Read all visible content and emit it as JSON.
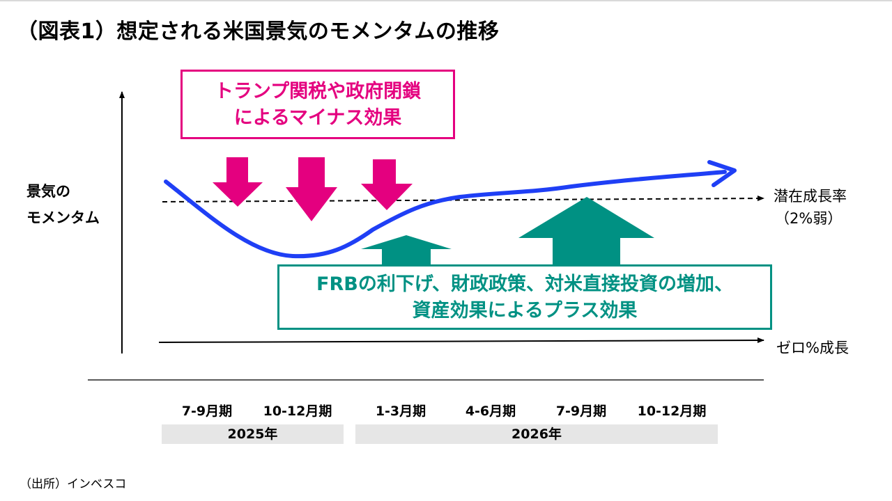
{
  "title": "（図表1）想定される米国景気のモメンタムの推移",
  "y_axis_label": [
    "景気の",
    "モメンタム"
  ],
  "negative_box": [
    "トランプ関税や政府閉鎖",
    "によるマイナス効果"
  ],
  "positive_box": [
    "FRBの利下げ、財政政策、対米直接投資の増加、",
    "資産効果によるプラス効果"
  ],
  "potential_growth": {
    "label": "潜在成長率",
    "value": "（2%弱）"
  },
  "zero_growth_label": "ゼロ%成長",
  "quarters": [
    "7-9月期",
    "10-12月期",
    "1-3月期",
    "4-6月期",
    "7-9月期",
    "10-12月期"
  ],
  "years": [
    "2025年",
    "2026年"
  ],
  "source": "（出所）インベスコ",
  "colors": {
    "momentum_line": "#1f3ff5",
    "negative": "#e4007f",
    "positive": "#009183"
  }
}
